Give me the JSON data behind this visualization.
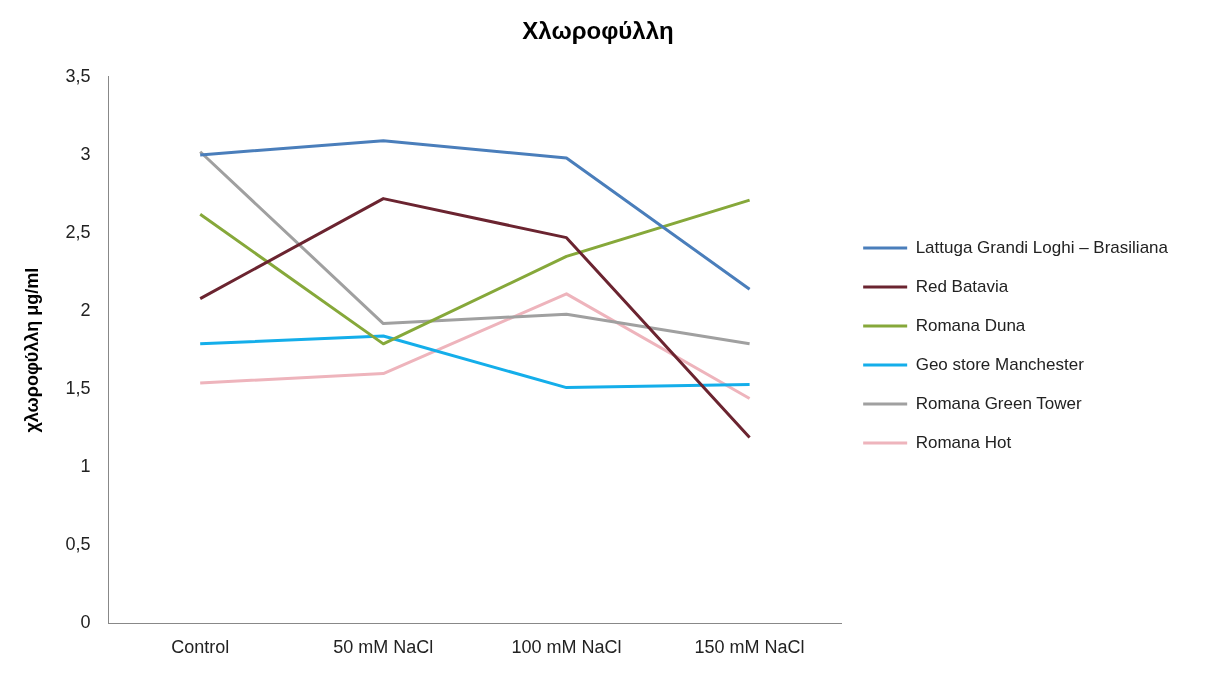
{
  "chart_data": {
    "type": "line",
    "title": "Χλωροφύλλη",
    "ylabel": "χλωροφύλλη μg/ml",
    "categories": [
      "Control",
      "50 mM NaCl",
      "100 mM NaCl",
      "150 mM NaCl"
    ],
    "series": [
      {
        "name": "Lattuga Grandi Loghi – Brasiliana",
        "color": "#4a7ebb",
        "values": [
          3.0,
          3.09,
          2.98,
          2.14
        ]
      },
      {
        "name": "Red Batavia",
        "color": "#6b2430",
        "values": [
          2.08,
          2.72,
          2.47,
          1.19
        ]
      },
      {
        "name": "Romana Duna",
        "color": "#86a83a",
        "values": [
          2.62,
          1.79,
          2.35,
          2.71
        ]
      },
      {
        "name": "Geo store Manchester",
        "color": "#14aeea",
        "values": [
          1.79,
          1.84,
          1.51,
          1.53
        ]
      },
      {
        "name": "Romana Green Tower",
        "color": "#a0a0a0",
        "values": [
          3.02,
          1.92,
          1.98,
          1.79
        ]
      },
      {
        "name": "Romana Hot",
        "color": "#eeb4bc",
        "values": [
          1.54,
          1.6,
          2.11,
          1.44
        ]
      }
    ],
    "ylim": [
      0,
      3.5
    ],
    "yticks": [
      0,
      {
        "value": 0.5,
        "label": "0,5"
      },
      1,
      {
        "value": 1.5,
        "label": "1,5"
      },
      2,
      {
        "value": 2.5,
        "label": "2,5"
      },
      3,
      {
        "value": 3.5,
        "label": "3,5"
      }
    ],
    "grid": false,
    "legend": "right",
    "marker": "none",
    "line_style": "solid"
  }
}
